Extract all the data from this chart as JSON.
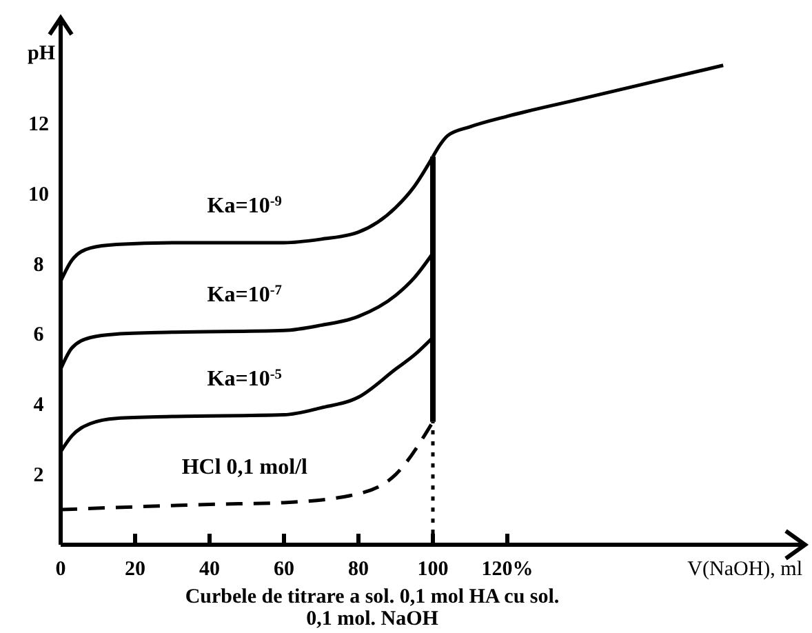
{
  "chart_data": {
    "type": "line",
    "title": "Curbele de titrare a sol. 0,1 mol HA cu sol. 0,1 mol. NaOH",
    "xlabel": "V(NaOH), ml",
    "ylabel": "pH",
    "xlim": [
      0,
      200
    ],
    "ylim": [
      0,
      15
    ],
    "xticks": [
      0,
      20,
      40,
      60,
      80,
      100,
      {
        "value": 120,
        "label": "120%"
      }
    ],
    "yticks": [
      2,
      4,
      6,
      8,
      10,
      12
    ],
    "series": [
      {
        "name": "Ka=10$^{-9}$",
        "color": "#000000",
        "x": [
          0,
          3,
          8,
          15,
          30,
          60,
          70,
          80,
          90,
          95,
          100
        ],
        "values": [
          7.5,
          8.1,
          8.45,
          8.55,
          8.6,
          8.6,
          8.7,
          8.9,
          9.6,
          10.2,
          11.05
        ]
      },
      {
        "name": "Ka=10$^{-7}$",
        "color": "#000000",
        "x": [
          0,
          3,
          8,
          15,
          30,
          60,
          70,
          80,
          90,
          95,
          100
        ],
        "values": [
          5.0,
          5.6,
          5.9,
          6.0,
          6.05,
          6.1,
          6.25,
          6.5,
          7.1,
          7.6,
          8.3
        ]
      },
      {
        "name": "Ka=10$^{-5}$",
        "color": "#000000",
        "x": [
          0,
          3,
          8,
          15,
          30,
          60,
          70,
          80,
          90,
          95,
          100
        ],
        "values": [
          2.65,
          3.1,
          3.45,
          3.6,
          3.65,
          3.7,
          3.9,
          4.2,
          5.0,
          5.4,
          5.9
        ]
      },
      {
        "name": "HCl 0,1 mol/l",
        "color": "#000000",
        "line_style": "dashed",
        "x": [
          0,
          20,
          40,
          60,
          80,
          90,
          100
        ],
        "values": [
          1.0,
          1.08,
          1.15,
          1.2,
          1.45,
          2.0,
          3.5
        ]
      },
      {
        "color": "#000000",
        "x": [
          100,
          100
        ],
        "values": [
          3.5,
          11.05
        ]
      },
      {
        "color": "#000000",
        "line_style": "dotted",
        "x": [
          100,
          100
        ],
        "values": [
          0,
          3.5
        ]
      },
      {
        "color": "#000000",
        "x": [
          100,
          102,
          104,
          110,
          120,
          140,
          160,
          178
        ],
        "values": [
          11.05,
          11.4,
          11.65,
          11.9,
          12.2,
          12.7,
          13.2,
          13.65
        ]
      }
    ]
  }
}
